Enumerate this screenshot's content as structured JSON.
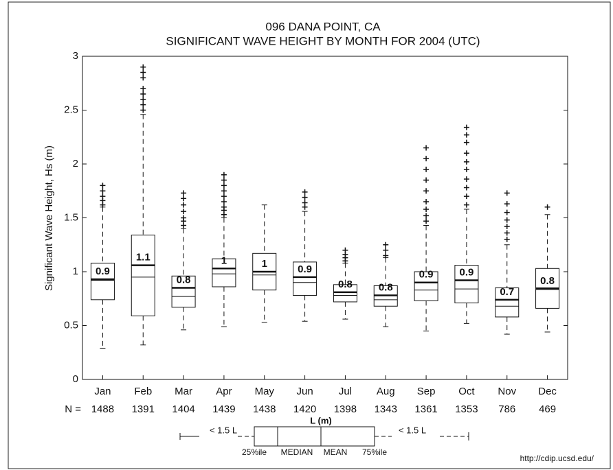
{
  "chart_data": {
    "type": "box",
    "title": "096 DANA POINT, CA",
    "subtitle": "SIGNIFICANT WAVE HEIGHT BY MONTH FOR 2004 (UTC)",
    "y_label": "Significant Wave Height, Hs (m)",
    "categories": [
      "Jan",
      "Feb",
      "Mar",
      "Apr",
      "May",
      "Jun",
      "Jul",
      "Aug",
      "Sep",
      "Oct",
      "Nov",
      "Dec"
    ],
    "count_label": "N =",
    "counts": [
      1488,
      1391,
      1404,
      1439,
      1438,
      1420,
      1398,
      1343,
      1361,
      1353,
      786,
      469
    ],
    "boxes": [
      {
        "low": 0.29,
        "q1": 0.74,
        "median": 0.92,
        "mean": 0.93,
        "q3": 1.08,
        "high": 1.6,
        "outliers": [
          1.62,
          1.66,
          1.7,
          1.75,
          1.8
        ],
        "mean_label": "0.9"
      },
      {
        "low": 0.32,
        "q1": 0.59,
        "median": 0.95,
        "mean": 1.06,
        "q3": 1.34,
        "high": 2.46,
        "outliers": [
          2.5,
          2.55,
          2.6,
          2.65,
          2.7,
          2.8,
          2.85,
          2.9
        ],
        "mean_label": "1.1"
      },
      {
        "low": 0.46,
        "q1": 0.67,
        "median": 0.77,
        "mean": 0.85,
        "q3": 0.96,
        "high": 1.4,
        "outliers": [
          1.43,
          1.47,
          1.5,
          1.56,
          1.62,
          1.68,
          1.73
        ],
        "mean_label": "0.8"
      },
      {
        "low": 0.49,
        "q1": 0.86,
        "median": 0.98,
        "mean": 1.03,
        "q3": 1.12,
        "high": 1.5,
        "outliers": [
          1.53,
          1.57,
          1.6,
          1.65,
          1.7,
          1.75,
          1.8,
          1.85,
          1.9
        ],
        "mean_label": "1"
      },
      {
        "low": 0.53,
        "q1": 0.83,
        "median": 0.97,
        "mean": 1.0,
        "q3": 1.17,
        "high": 1.62,
        "outliers": [],
        "mean_label": "1"
      },
      {
        "low": 0.54,
        "q1": 0.78,
        "median": 0.9,
        "mean": 0.95,
        "q3": 1.09,
        "high": 1.56,
        "outliers": [
          1.6,
          1.64,
          1.69,
          1.74
        ],
        "mean_label": "0.9"
      },
      {
        "low": 0.56,
        "q1": 0.72,
        "median": 0.78,
        "mean": 0.81,
        "q3": 0.88,
        "high": 1.08,
        "outliers": [
          1.1,
          1.13,
          1.16,
          1.2
        ],
        "mean_label": "0.8"
      },
      {
        "low": 0.49,
        "q1": 0.68,
        "median": 0.74,
        "mean": 0.78,
        "q3": 0.87,
        "high": 1.13,
        "outliers": [
          1.15,
          1.2,
          1.25
        ],
        "mean_label": "0.8"
      },
      {
        "low": 0.45,
        "q1": 0.73,
        "median": 0.83,
        "mean": 0.9,
        "q3": 1.0,
        "high": 1.43,
        "outliers": [
          1.47,
          1.52,
          1.58,
          1.65,
          1.75,
          1.85,
          1.95,
          2.05,
          2.15
        ],
        "mean_label": "0.9"
      },
      {
        "low": 0.52,
        "q1": 0.71,
        "median": 0.84,
        "mean": 0.92,
        "q3": 1.06,
        "high": 1.58,
        "outliers": [
          1.62,
          1.7,
          1.78,
          1.86,
          1.95,
          2.02,
          2.1,
          2.2,
          2.27,
          2.34
        ],
        "mean_label": "0.9"
      },
      {
        "low": 0.42,
        "q1": 0.58,
        "median": 0.68,
        "mean": 0.74,
        "q3": 0.85,
        "high": 1.25,
        "outliers": [
          1.3,
          1.36,
          1.42,
          1.48,
          1.55,
          1.63,
          1.73
        ],
        "mean_label": "0.7"
      },
      {
        "low": 0.44,
        "q1": 0.66,
        "median": 0.85,
        "mean": 0.84,
        "q3": 1.03,
        "high": 1.53,
        "outliers": [
          1.6
        ],
        "mean_label": "0.8"
      }
    ],
    "ylim": [
      0,
      3
    ],
    "yticks": [
      0,
      0.5,
      1,
      1.5,
      2,
      2.5,
      3
    ],
    "legend": {
      "title": "L (m)",
      "whisker": "< 1.5 L",
      "q1": "25%ile",
      "median": "MEDIAN",
      "mean": "MEAN",
      "q3": "75%ile"
    },
    "source": "http://cdip.ucsd.edu/"
  }
}
